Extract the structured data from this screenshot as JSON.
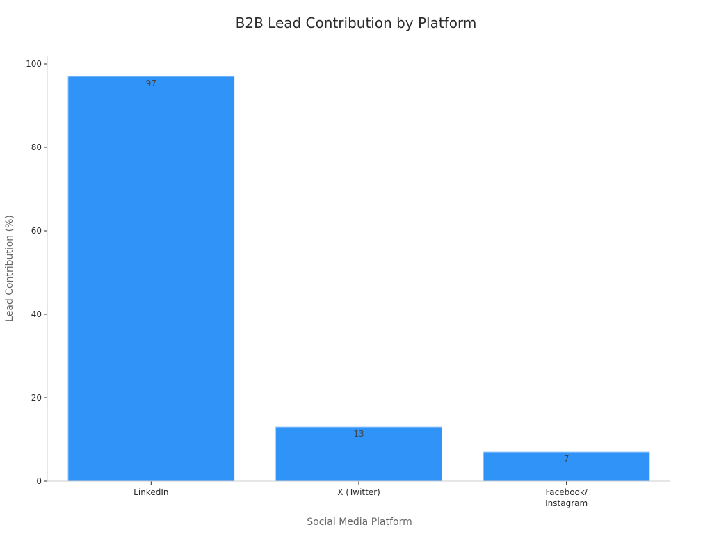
{
  "chart_data": {
    "type": "bar",
    "title": "B2B Lead Contribution by Platform",
    "xlabel": "Social Media Platform",
    "ylabel": "Lead Contribution (%)",
    "categories": [
      [
        "LinkedIn"
      ],
      [
        "X (Twitter)"
      ],
      [
        "Facebook/",
        "Instagram"
      ]
    ],
    "values": [
      97,
      13,
      7
    ],
    "data_labels": [
      "97",
      "13",
      "7"
    ],
    "ylim": [
      0,
      102
    ],
    "yticks": [
      0,
      20,
      40,
      60,
      80,
      100
    ],
    "grid": false,
    "legend": "none",
    "colors": {
      "bar": "#2f93f8",
      "bar_edge": "#a9d2fb"
    }
  }
}
